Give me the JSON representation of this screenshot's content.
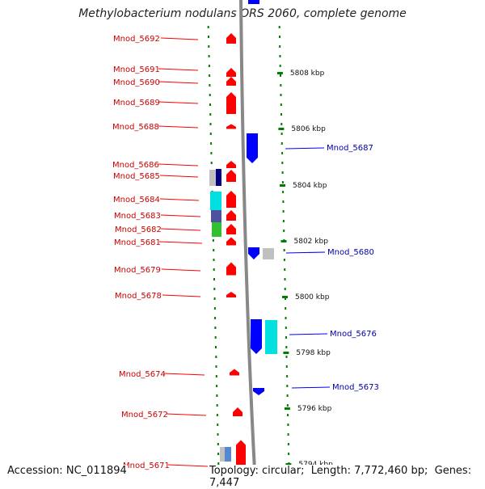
{
  "title": "Methylobacterium nodulans ORS 2060, complete genome",
  "footer": {
    "accession_label": "Accession:",
    "accession": "NC_011894",
    "topology_label": "Topology:",
    "topology": "circular",
    "length_label": "Length:",
    "length": "7,772,460 bp",
    "genes_label": "Genes:",
    "genes": "7,447"
  },
  "colors": {
    "forward": "#ff0000",
    "reverse": "#0000ff",
    "forward_label": "#cc0000",
    "reverse_label": "#0000aa",
    "tick": "#008000",
    "backbone": "#888888"
  },
  "scale_ticks": [
    "5808 kbp",
    "5806 kbp",
    "5804 kbp",
    "5802 kbp",
    "5800 kbp",
    "5798 kbp",
    "5796 kbp",
    "5794 kbp"
  ],
  "forward_genes": [
    "Mnod_5692",
    "Mnod_5691",
    "Mnod_5690",
    "Mnod_5689",
    "Mnod_5688",
    "Mnod_5686",
    "Mnod_5685",
    "Mnod_5684",
    "Mnod_5683",
    "Mnod_5682",
    "Mnod_5681",
    "Mnod_5679",
    "Mnod_5678",
    "Mnod_5674",
    "Mnod_5672",
    "Mnod_5671"
  ],
  "reverse_genes": [
    "Mnod_5687",
    "Mnod_5680",
    "Mnod_5676",
    "Mnod_5673"
  ],
  "feature_colors": {
    "grey": "#c0c0c0",
    "navy": "#000080",
    "cyan": "#00e0e0",
    "purple": "#5050a0",
    "green": "#30c030"
  }
}
